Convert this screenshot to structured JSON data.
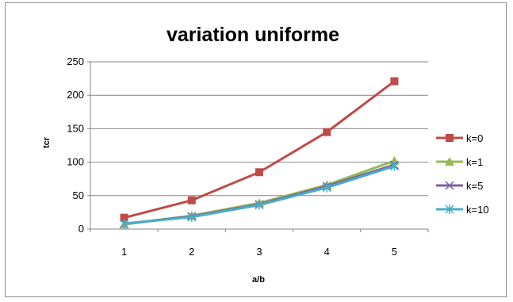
{
  "chart_data": {
    "type": "line",
    "title": "variation uniforme",
    "xlabel": "a/b",
    "ylabel": "tcr",
    "categories": [
      "1",
      "2",
      "3",
      "4",
      "5"
    ],
    "ylim": [
      0,
      250
    ],
    "yticks": [
      "0",
      "50",
      "100",
      "150",
      "200",
      "250"
    ],
    "grid": true,
    "legend_position": "right",
    "series": [
      {
        "name": "k=0",
        "values": [
          17,
          43,
          85,
          145,
          221
        ],
        "color": "#be4b48",
        "marker": "square"
      },
      {
        "name": "k=1",
        "values": [
          7,
          20,
          39,
          66,
          102
        ],
        "color": "#98b954",
        "marker": "triangle"
      },
      {
        "name": "k=5",
        "values": [
          8,
          19,
          37,
          64,
          96
        ],
        "color": "#7d60a0",
        "marker": "x"
      },
      {
        "name": "k=10",
        "values": [
          8,
          18,
          36,
          62,
          94
        ],
        "color": "#4bacc6",
        "marker": "star"
      }
    ]
  }
}
